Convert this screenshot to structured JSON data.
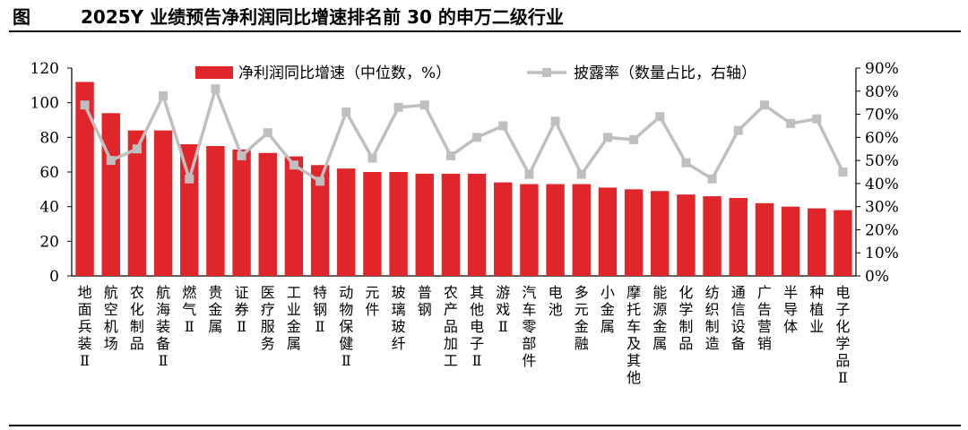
{
  "header": {
    "figure_label": "图",
    "title": "2025Y 业绩预告净利润同比增速排名前 30 的申万二级行业"
  },
  "colors": {
    "bar": "#e0262b",
    "line": "#bfbfbf",
    "marker": "#bfbfbf"
  },
  "chart_data": {
    "type": "bar",
    "title": "2025Y 业绩预告净利润同比增速排名前 30 的申万二级行业",
    "categories": [
      "地面兵装Ⅱ",
      "航空机场",
      "农化制品",
      "航海装备Ⅱ",
      "燃气Ⅱ",
      "贵金属",
      "证券Ⅱ",
      "医疗服务",
      "工业金属",
      "特钢Ⅱ",
      "动物保健Ⅱ",
      "元件",
      "玻璃玻纤",
      "普钢",
      "农产品加工",
      "其他电子Ⅱ",
      "游戏Ⅱ",
      "汽车零部件",
      "电池",
      "多元金融",
      "小金属",
      "摩托车及其他",
      "能源金属",
      "化学制品",
      "纺织制造",
      "通信设备",
      "广告营销",
      "半导体",
      "种植业",
      "电子化学品Ⅱ"
    ],
    "series": [
      {
        "name": "净利润同比增速（中位数，%）",
        "type": "bar",
        "axis": "left",
        "values": [
          112,
          94,
          84,
          84,
          76,
          75,
          73,
          71,
          69,
          64,
          62,
          60,
          60,
          59,
          59,
          59,
          54,
          53,
          53,
          53,
          51,
          50,
          49,
          47,
          46,
          45,
          42,
          40,
          39,
          38
        ]
      },
      {
        "name": "披露率（数量占比，右轴）",
        "type": "line",
        "axis": "right",
        "values": [
          74,
          50,
          55,
          78,
          42,
          81,
          52,
          62,
          48,
          41,
          71,
          51,
          73,
          74,
          52,
          60,
          65,
          44,
          67,
          44,
          60,
          59,
          69,
          49,
          42,
          63,
          74,
          66,
          68,
          45
        ]
      }
    ],
    "y_left": {
      "min": 0,
      "max": 120,
      "step": 20,
      "tick_labels": [
        "0",
        "20",
        "40",
        "60",
        "80",
        "100",
        "120"
      ]
    },
    "y_right": {
      "min": 0,
      "max": 90,
      "step": 10,
      "tick_labels": [
        "0%",
        "10%",
        "20%",
        "30%",
        "40%",
        "50%",
        "60%",
        "70%",
        "80%",
        "90%"
      ]
    },
    "xlabel": "",
    "ylabel": "",
    "grid": false,
    "legend_position": "top-center"
  }
}
